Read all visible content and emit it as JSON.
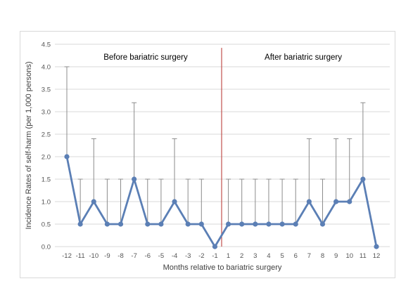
{
  "chart_data": {
    "type": "line",
    "title": "",
    "xlabel": "Months relative to bariatric surgery",
    "ylabel": "Incidence Rates  of self-harm  (per 1,000 persons)",
    "x": [
      -12,
      -11,
      -10,
      -9,
      -8,
      -7,
      -6,
      -5,
      -4,
      -3,
      -2,
      -1,
      1,
      2,
      3,
      4,
      5,
      6,
      7,
      8,
      9,
      10,
      11,
      12
    ],
    "x_tick_labels": [
      "-12",
      "-11",
      "-10",
      "-9",
      "-8",
      "-7",
      "-6",
      "-5",
      "-4",
      "-3",
      "-2",
      "-1",
      "1",
      "2",
      "3",
      "4",
      "5",
      "6",
      "7",
      "8",
      "9",
      "10",
      "11",
      "12"
    ],
    "series": [
      {
        "values": [
          2.0,
          0.5,
          1.0,
          0.5,
          0.5,
          1.5,
          0.5,
          0.5,
          1.0,
          0.5,
          0.5,
          0.0,
          0.5,
          0.5,
          0.5,
          0.5,
          0.5,
          0.5,
          1.0,
          0.5,
          1.0,
          1.0,
          1.5,
          0.0
        ],
        "upper": [
          4.0,
          1.5,
          2.4,
          1.5,
          1.5,
          3.2,
          1.5,
          1.5,
          2.4,
          1.5,
          1.5,
          0.0,
          1.5,
          1.5,
          1.5,
          1.5,
          1.5,
          1.5,
          2.4,
          1.5,
          2.4,
          2.4,
          3.2,
          0.0
        ],
        "color": "#5b7fb5"
      }
    ],
    "ylim": [
      0,
      4.5
    ],
    "y_ticks": [
      "0.0",
      "0.5",
      "1.0",
      "1.5",
      "2.0",
      "2.5",
      "3.0",
      "3.5",
      "4.0",
      "4.5"
    ],
    "grid": true,
    "error_bar_color": "#8c8c8c",
    "divider_color": "#c0504d",
    "divider_between": [
      -1,
      1
    ],
    "annotations": [
      "Before bariatric surgery",
      "After bariatric surgery"
    ]
  }
}
